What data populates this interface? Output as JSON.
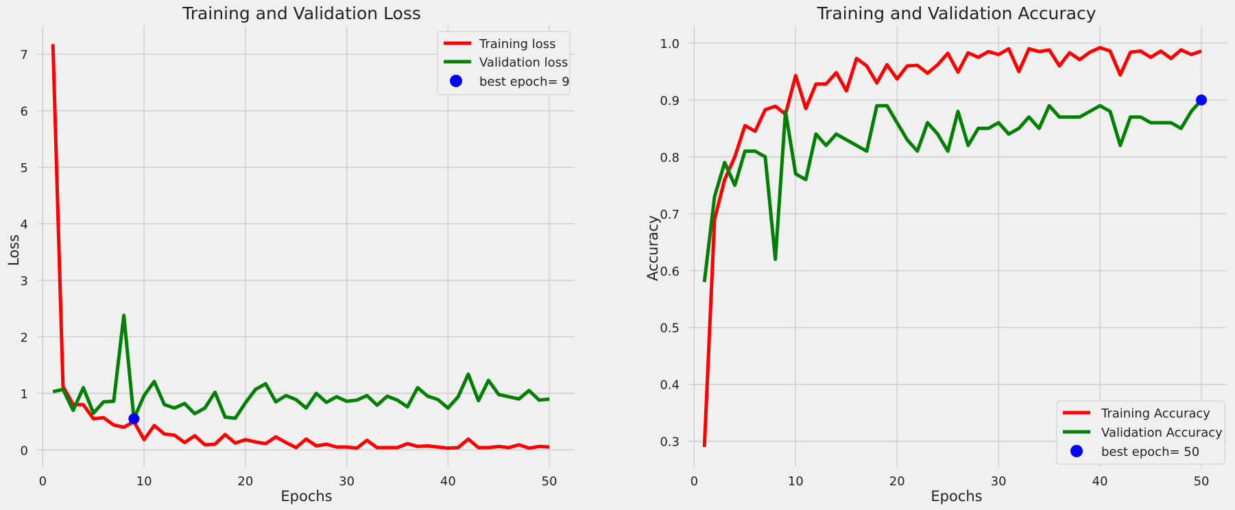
{
  "chart_data": [
    {
      "type": "line",
      "title": "Training and Validation Loss",
      "xlabel": "Epochs",
      "ylabel": "Loss",
      "xlim": [
        -0.5,
        52.5
      ],
      "ylim": [
        -0.3,
        7.5
      ],
      "xticks": [
        0,
        10,
        20,
        30,
        40,
        50
      ],
      "yticks": [
        0,
        1,
        2,
        3,
        4,
        5,
        6,
        7
      ],
      "grid": true,
      "legend_position": "top-right",
      "x": [
        1,
        2,
        3,
        4,
        5,
        6,
        7,
        8,
        9,
        10,
        11,
        12,
        13,
        14,
        15,
        16,
        17,
        18,
        19,
        20,
        21,
        22,
        23,
        24,
        25,
        26,
        27,
        28,
        29,
        30,
        31,
        32,
        33,
        34,
        35,
        36,
        37,
        38,
        39,
        40,
        41,
        42,
        43,
        44,
        45,
        46,
        47,
        48,
        49,
        50
      ],
      "series": [
        {
          "name": "Training loss",
          "color": "#ff0000",
          "values": [
            7.18,
            1.12,
            0.8,
            0.8,
            0.55,
            0.57,
            0.44,
            0.4,
            0.5,
            0.18,
            0.43,
            0.28,
            0.26,
            0.13,
            0.25,
            0.09,
            0.1,
            0.27,
            0.12,
            0.18,
            0.14,
            0.11,
            0.23,
            0.13,
            0.04,
            0.19,
            0.07,
            0.1,
            0.05,
            0.05,
            0.03,
            0.17,
            0.04,
            0.04,
            0.04,
            0.11,
            0.06,
            0.07,
            0.05,
            0.03,
            0.04,
            0.19,
            0.04,
            0.04,
            0.06,
            0.04,
            0.09,
            0.03,
            0.06,
            0.05
          ]
        },
        {
          "name": "Validation loss",
          "color": "#008000",
          "values": [
            1.03,
            1.07,
            0.7,
            1.1,
            0.65,
            0.85,
            0.86,
            2.38,
            0.55,
            0.96,
            1.21,
            0.8,
            0.74,
            0.82,
            0.64,
            0.74,
            1.02,
            0.58,
            0.56,
            0.83,
            1.07,
            1.17,
            0.85,
            0.96,
            0.89,
            0.74,
            1.0,
            0.84,
            0.94,
            0.86,
            0.88,
            0.96,
            0.79,
            0.95,
            0.88,
            0.76,
            1.1,
            0.95,
            0.89,
            0.74,
            0.94,
            1.34,
            0.87,
            1.23,
            0.98,
            0.94,
            0.9,
            1.05,
            0.88,
            0.9
          ]
        }
      ],
      "best_point": {
        "label": "best epoch= 9",
        "x": 9,
        "y": 0.55,
        "color": "#0000ff"
      }
    },
    {
      "type": "line",
      "title": "Training and Validation Accuracy",
      "xlabel": "Epochs",
      "ylabel": "Accuracy",
      "xlim": [
        -0.5,
        52.5
      ],
      "ylim": [
        0.255,
        1.03
      ],
      "xticks": [
        0,
        10,
        20,
        30,
        40,
        50
      ],
      "yticks": [
        0.3,
        0.4,
        0.5,
        0.6,
        0.7,
        0.8,
        0.9,
        1.0
      ],
      "grid": true,
      "legend_position": "bottom-right",
      "x": [
        1,
        2,
        3,
        4,
        5,
        6,
        7,
        8,
        9,
        10,
        11,
        12,
        13,
        14,
        15,
        16,
        17,
        18,
        19,
        20,
        21,
        22,
        23,
        24,
        25,
        26,
        27,
        28,
        29,
        30,
        31,
        32,
        33,
        34,
        35,
        36,
        37,
        38,
        39,
        40,
        41,
        42,
        43,
        44,
        45,
        46,
        47,
        48,
        49,
        50
      ],
      "series": [
        {
          "name": "Training Accuracy",
          "color": "#ff0000",
          "values": [
            0.29,
            0.69,
            0.76,
            0.8,
            0.855,
            0.845,
            0.883,
            0.889,
            0.875,
            0.943,
            0.885,
            0.928,
            0.928,
            0.948,
            0.916,
            0.973,
            0.96,
            0.93,
            0.962,
            0.937,
            0.96,
            0.961,
            0.947,
            0.962,
            0.982,
            0.949,
            0.983,
            0.975,
            0.985,
            0.98,
            0.99,
            0.95,
            0.99,
            0.985,
            0.988,
            0.96,
            0.983,
            0.971,
            0.984,
            0.992,
            0.986,
            0.944,
            0.984,
            0.986,
            0.975,
            0.986,
            0.973,
            0.988,
            0.98,
            0.986
          ]
        },
        {
          "name": "Validation Accuracy",
          "color": "#008000",
          "values": [
            0.58,
            0.73,
            0.79,
            0.75,
            0.81,
            0.81,
            0.8,
            0.62,
            0.88,
            0.77,
            0.76,
            0.84,
            0.82,
            0.84,
            0.83,
            0.82,
            0.81,
            0.89,
            0.89,
            0.86,
            0.83,
            0.81,
            0.86,
            0.84,
            0.81,
            0.88,
            0.82,
            0.85,
            0.85,
            0.86,
            0.84,
            0.85,
            0.87,
            0.85,
            0.89,
            0.87,
            0.87,
            0.87,
            0.88,
            0.89,
            0.88,
            0.82,
            0.87,
            0.87,
            0.86,
            0.86,
            0.86,
            0.85,
            0.88,
            0.9
          ]
        }
      ],
      "best_point": {
        "label": "best epoch= 50",
        "x": 50,
        "y": 0.9,
        "color": "#0000ff"
      }
    }
  ]
}
